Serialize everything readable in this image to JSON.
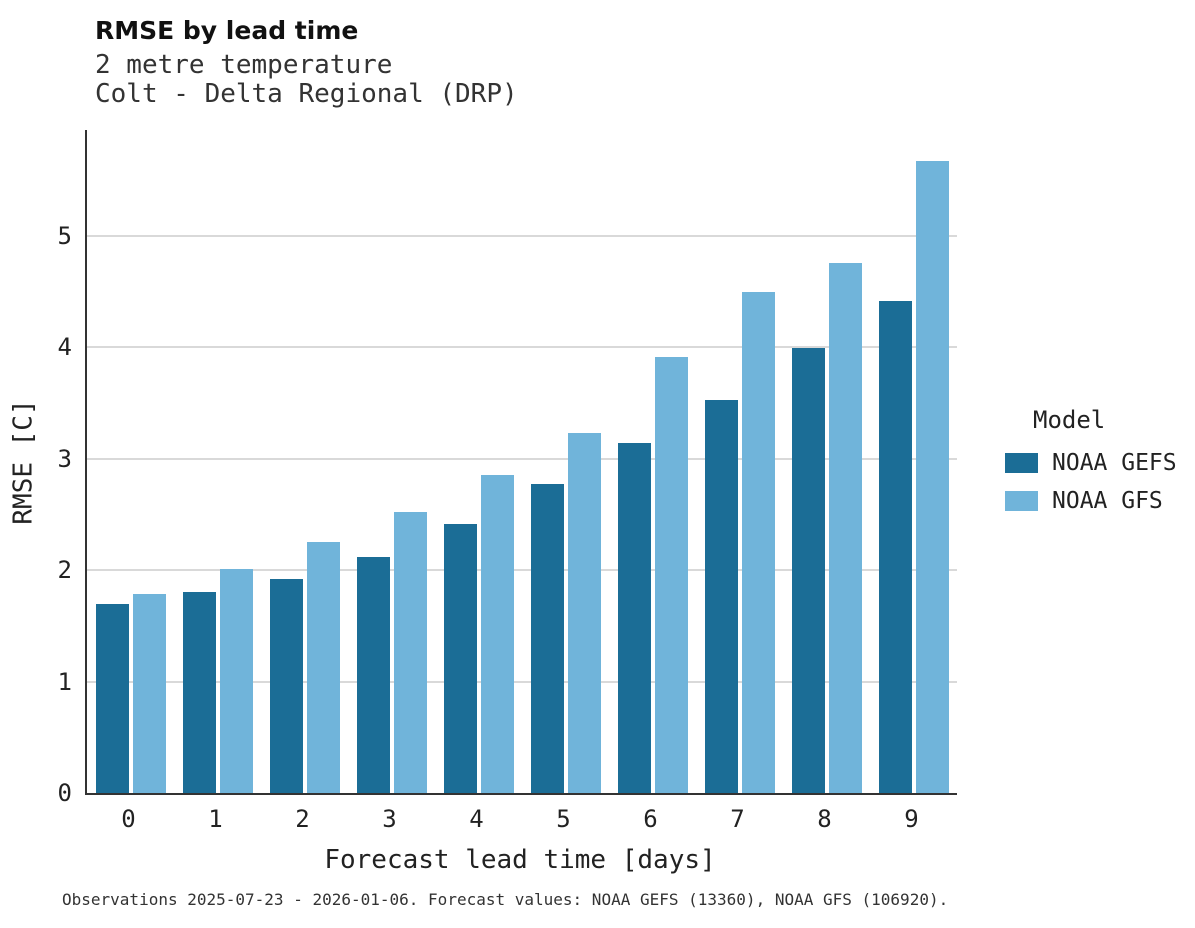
{
  "chart_data": {
    "type": "bar",
    "title": "RMSE by lead time",
    "subtitle1": "2 metre temperature",
    "subtitle2": "Colt - Delta Regional (DRP)",
    "xlabel": "Forecast lead time [days]",
    "ylabel": "RMSE [C]",
    "categories": [
      "0",
      "1",
      "2",
      "3",
      "4",
      "5",
      "6",
      "7",
      "8",
      "9"
    ],
    "series": [
      {
        "name": "NOAA GEFS",
        "color": "#1b6d96",
        "values": [
          1.7,
          1.8,
          1.92,
          2.12,
          2.41,
          2.77,
          3.14,
          3.53,
          3.99,
          4.42
        ]
      },
      {
        "name": "NOAA GFS",
        "color": "#70b4da",
        "values": [
          1.79,
          2.01,
          2.25,
          2.52,
          2.85,
          3.23,
          3.91,
          4.5,
          4.76,
          5.67
        ]
      }
    ],
    "ylim": [
      0,
      5.95
    ],
    "yticks": [
      0,
      1,
      2,
      3,
      4,
      5
    ],
    "grid": "horizontal",
    "legend_title": "Model",
    "legend_position": "right"
  },
  "caption": "Observations 2025-07-23 - 2026-01-06. Forecast values: NOAA GEFS (13360), NOAA GFS (106920)."
}
